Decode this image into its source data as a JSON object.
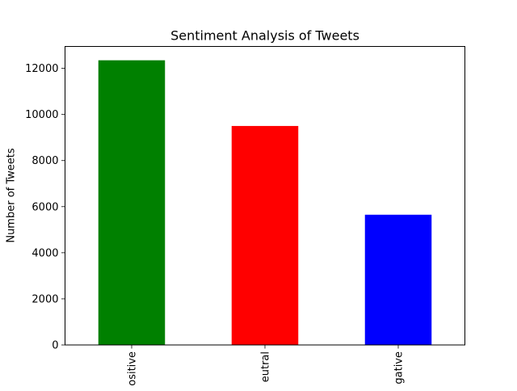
{
  "chart_data": {
    "type": "bar",
    "title": "Sentiment Analysis of Tweets",
    "xlabel": "",
    "ylabel": "Number of Tweets",
    "categories": [
      "Positive",
      "Neutral",
      "Negative"
    ],
    "tick_labels_visible": [
      "ositive",
      "eutral",
      "gative"
    ],
    "values": [
      12350,
      9500,
      5650
    ],
    "colors": [
      "#008000",
      "#ff0000",
      "#0000ff"
    ],
    "ylim": [
      0,
      12950
    ],
    "yticks": [
      0,
      2000,
      4000,
      6000,
      8000,
      10000,
      12000
    ],
    "ytick_labels": [
      "0",
      "2000",
      "4000",
      "6000",
      "8000",
      "10000",
      "12000"
    ],
    "grid": false,
    "legend": "none"
  }
}
